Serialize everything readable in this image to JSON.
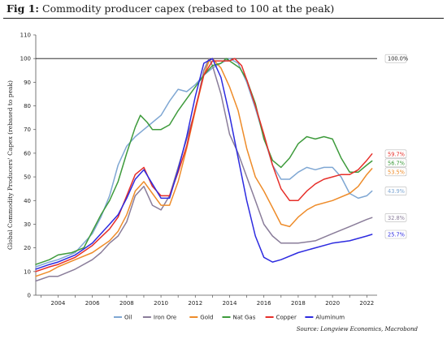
{
  "figure": {
    "label": "Fig 1:",
    "title": "Commodity producer capex (rebased to 100 at the peak)",
    "source": "Source: Longview Economics, Macrobond"
  },
  "chart_data": {
    "type": "line",
    "ylabel": "Global Commodity Producers' Capex (rebased to peak)",
    "xlabel": "",
    "xlim": [
      2002.7,
      2022.6
    ],
    "ylim": [
      0,
      110
    ],
    "x_ticks": [
      "2004",
      "2006",
      "2008",
      "2010",
      "2012",
      "2014",
      "2016",
      "2018",
      "2020",
      "2022"
    ],
    "y_ticks": [
      "0",
      "10",
      "20",
      "30",
      "40",
      "50",
      "60",
      "70",
      "80",
      "90",
      "100",
      "110"
    ],
    "reference_line": {
      "value": 100,
      "label": "100.0%"
    },
    "legend_position": "bottom",
    "series": [
      {
        "name": "Oil",
        "color": "#7fa7d3",
        "end_label": "43.9%",
        "points": [
          [
            2002.7,
            12
          ],
          [
            2003.5,
            14
          ],
          [
            2004.0,
            15
          ],
          [
            2005.0,
            18
          ],
          [
            2006.0,
            26
          ],
          [
            2006.5,
            33
          ],
          [
            2007.0,
            42
          ],
          [
            2007.5,
            55
          ],
          [
            2008.0,
            63
          ],
          [
            2008.5,
            67
          ],
          [
            2009.0,
            70
          ],
          [
            2009.5,
            73
          ],
          [
            2010.0,
            76
          ],
          [
            2010.5,
            82
          ],
          [
            2011.0,
            87
          ],
          [
            2011.5,
            86
          ],
          [
            2012.0,
            89
          ],
          [
            2012.5,
            93
          ],
          [
            2013.0,
            96
          ],
          [
            2013.5,
            98
          ],
          [
            2014.0,
            100
          ],
          [
            2014.5,
            98
          ],
          [
            2015.0,
            90
          ],
          [
            2015.5,
            79
          ],
          [
            2016.0,
            67
          ],
          [
            2016.5,
            55
          ],
          [
            2017.0,
            49
          ],
          [
            2017.5,
            49
          ],
          [
            2018.0,
            52
          ],
          [
            2018.5,
            54
          ],
          [
            2019.0,
            53
          ],
          [
            2019.5,
            54
          ],
          [
            2020.0,
            54
          ],
          [
            2020.5,
            50
          ],
          [
            2021.0,
            43
          ],
          [
            2021.5,
            41
          ],
          [
            2022.0,
            42
          ],
          [
            2022.3,
            44
          ]
        ]
      },
      {
        "name": "Iron Ore",
        "color": "#8a7d9a",
        "end_label": "32.8%",
        "points": [
          [
            2002.7,
            6
          ],
          [
            2003.5,
            8
          ],
          [
            2004.0,
            8
          ],
          [
            2005.0,
            11
          ],
          [
            2006.0,
            15
          ],
          [
            2006.5,
            18
          ],
          [
            2007.0,
            22
          ],
          [
            2007.5,
            25
          ],
          [
            2008.0,
            31
          ],
          [
            2008.5,
            42
          ],
          [
            2009.0,
            46
          ],
          [
            2009.5,
            38
          ],
          [
            2010.0,
            36
          ],
          [
            2010.5,
            42
          ],
          [
            2011.0,
            54
          ],
          [
            2011.5,
            66
          ],
          [
            2012.0,
            78
          ],
          [
            2012.5,
            95
          ],
          [
            2012.8,
            100
          ],
          [
            2013.0,
            97
          ],
          [
            2013.5,
            85
          ],
          [
            2014.0,
            68
          ],
          [
            2014.5,
            60
          ],
          [
            2015.0,
            50
          ],
          [
            2015.5,
            40
          ],
          [
            2016.0,
            30
          ],
          [
            2016.5,
            25
          ],
          [
            2017.0,
            22
          ],
          [
            2018.0,
            22
          ],
          [
            2019.0,
            23
          ],
          [
            2020.0,
            26
          ],
          [
            2021.0,
            29
          ],
          [
            2022.0,
            32
          ],
          [
            2022.3,
            32.8
          ]
        ]
      },
      {
        "name": "Gold",
        "color": "#ee8c2a",
        "end_label": "53.5%",
        "points": [
          [
            2002.7,
            8
          ],
          [
            2003.5,
            10
          ],
          [
            2004.0,
            12
          ],
          [
            2005.0,
            15
          ],
          [
            2006.0,
            18
          ],
          [
            2007.0,
            23
          ],
          [
            2007.5,
            27
          ],
          [
            2008.0,
            34
          ],
          [
            2008.5,
            44
          ],
          [
            2009.0,
            48
          ],
          [
            2009.5,
            43
          ],
          [
            2010.0,
            38
          ],
          [
            2010.5,
            38
          ],
          [
            2011.0,
            48
          ],
          [
            2011.5,
            62
          ],
          [
            2012.0,
            78
          ],
          [
            2012.5,
            93
          ],
          [
            2012.8,
            99
          ],
          [
            2013.0,
            100
          ],
          [
            2013.5,
            96
          ],
          [
            2014.0,
            88
          ],
          [
            2014.5,
            78
          ],
          [
            2015.0,
            62
          ],
          [
            2015.5,
            50
          ],
          [
            2016.0,
            44
          ],
          [
            2016.5,
            37
          ],
          [
            2017.0,
            30
          ],
          [
            2017.5,
            29
          ],
          [
            2018.0,
            33
          ],
          [
            2018.5,
            36
          ],
          [
            2019.0,
            38
          ],
          [
            2020.0,
            40
          ],
          [
            2021.0,
            43
          ],
          [
            2021.5,
            46
          ],
          [
            2022.0,
            51
          ],
          [
            2022.3,
            53.5
          ]
        ]
      },
      {
        "name": "Nat Gas",
        "color": "#3e9b3c",
        "end_label": "56.7%",
        "points": [
          [
            2002.7,
            13
          ],
          [
            2003.5,
            15
          ],
          [
            2004.0,
            17
          ],
          [
            2004.8,
            18
          ],
          [
            2005.5,
            20
          ],
          [
            2006.0,
            27
          ],
          [
            2006.5,
            34
          ],
          [
            2007.0,
            40
          ],
          [
            2007.5,
            48
          ],
          [
            2008.0,
            60
          ],
          [
            2008.5,
            71
          ],
          [
            2008.8,
            76
          ],
          [
            2009.2,
            73
          ],
          [
            2009.5,
            70
          ],
          [
            2010.0,
            70
          ],
          [
            2010.5,
            72
          ],
          [
            2011.0,
            78
          ],
          [
            2011.5,
            83
          ],
          [
            2012.0,
            88
          ],
          [
            2012.5,
            93
          ],
          [
            2013.0,
            97
          ],
          [
            2013.5,
            98
          ],
          [
            2013.8,
            100
          ],
          [
            2014.2,
            98
          ],
          [
            2014.6,
            96
          ],
          [
            2015.0,
            91
          ],
          [
            2015.5,
            81
          ],
          [
            2016.0,
            66
          ],
          [
            2016.5,
            57
          ],
          [
            2017.0,
            54
          ],
          [
            2017.5,
            58
          ],
          [
            2018.0,
            64
          ],
          [
            2018.5,
            67
          ],
          [
            2019.0,
            66
          ],
          [
            2019.5,
            67
          ],
          [
            2020.0,
            66
          ],
          [
            2020.5,
            58
          ],
          [
            2021.0,
            52
          ],
          [
            2021.5,
            52
          ],
          [
            2022.0,
            55
          ],
          [
            2022.3,
            56.7
          ]
        ]
      },
      {
        "name": "Copper",
        "color": "#e62f2a",
        "end_label": "59.7%",
        "points": [
          [
            2002.7,
            10
          ],
          [
            2003.5,
            12
          ],
          [
            2004.0,
            13
          ],
          [
            2005.0,
            16
          ],
          [
            2006.0,
            21
          ],
          [
            2007.0,
            28
          ],
          [
            2007.5,
            33
          ],
          [
            2008.0,
            42
          ],
          [
            2008.5,
            51
          ],
          [
            2009.0,
            54
          ],
          [
            2009.5,
            46
          ],
          [
            2010.0,
            42
          ],
          [
            2010.5,
            42
          ],
          [
            2011.0,
            52
          ],
          [
            2011.5,
            63
          ],
          [
            2012.0,
            79
          ],
          [
            2012.5,
            93
          ],
          [
            2013.0,
            99
          ],
          [
            2013.5,
            99
          ],
          [
            2014.0,
            99
          ],
          [
            2014.3,
            100
          ],
          [
            2014.7,
            97
          ],
          [
            2015.0,
            91
          ],
          [
            2015.5,
            80
          ],
          [
            2016.0,
            68
          ],
          [
            2016.5,
            55
          ],
          [
            2017.0,
            45
          ],
          [
            2017.5,
            40
          ],
          [
            2018.0,
            40
          ],
          [
            2018.5,
            44
          ],
          [
            2019.0,
            47
          ],
          [
            2019.5,
            49
          ],
          [
            2020.0,
            50
          ],
          [
            2020.5,
            51
          ],
          [
            2021.0,
            51
          ],
          [
            2021.5,
            53
          ],
          [
            2022.0,
            57
          ],
          [
            2022.3,
            59.7
          ]
        ]
      },
      {
        "name": "Aluminum",
        "color": "#2d2be0",
        "end_label": "25.7%",
        "points": [
          [
            2002.7,
            11
          ],
          [
            2003.5,
            13
          ],
          [
            2004.0,
            14
          ],
          [
            2005.0,
            17
          ],
          [
            2006.0,
            22
          ],
          [
            2007.0,
            30
          ],
          [
            2007.5,
            34
          ],
          [
            2008.0,
            41
          ],
          [
            2008.5,
            49
          ],
          [
            2009.0,
            53
          ],
          [
            2009.5,
            47
          ],
          [
            2010.0,
            41
          ],
          [
            2010.5,
            41
          ],
          [
            2011.0,
            53
          ],
          [
            2011.5,
            67
          ],
          [
            2012.0,
            84
          ],
          [
            2012.5,
            98
          ],
          [
            2013.0,
            100
          ],
          [
            2013.5,
            92
          ],
          [
            2014.0,
            76
          ],
          [
            2014.5,
            58
          ],
          [
            2015.0,
            40
          ],
          [
            2015.5,
            25
          ],
          [
            2016.0,
            16
          ],
          [
            2016.5,
            14
          ],
          [
            2017.0,
            15
          ],
          [
            2018.0,
            18
          ],
          [
            2019.0,
            20
          ],
          [
            2020.0,
            22
          ],
          [
            2021.0,
            23
          ],
          [
            2022.0,
            25
          ],
          [
            2022.3,
            25.7
          ]
        ]
      }
    ]
  }
}
